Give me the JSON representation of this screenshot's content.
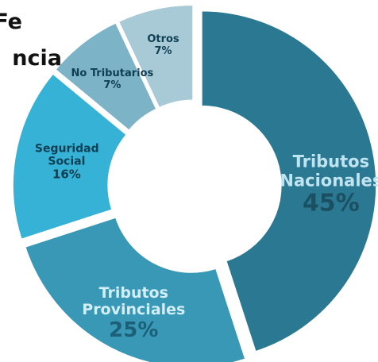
{
  "chart_data": {
    "type": "donut",
    "title_lines": [
      "Fe",
      "ncia"
    ],
    "categories": [
      "Tributos Nacionales",
      "Tributos Provinciales",
      "Seguridad Social",
      "No Tributarios",
      "Otros"
    ],
    "values": [
      45,
      25,
      16,
      7,
      7
    ],
    "value_labels": [
      "45%",
      "25%",
      "16%",
      "7%",
      "7%"
    ],
    "colors": [
      "#2b7893",
      "#3898b6",
      "#36b2d6",
      "#7cb3c7",
      "#a8c9d6"
    ],
    "exploded": true
  }
}
